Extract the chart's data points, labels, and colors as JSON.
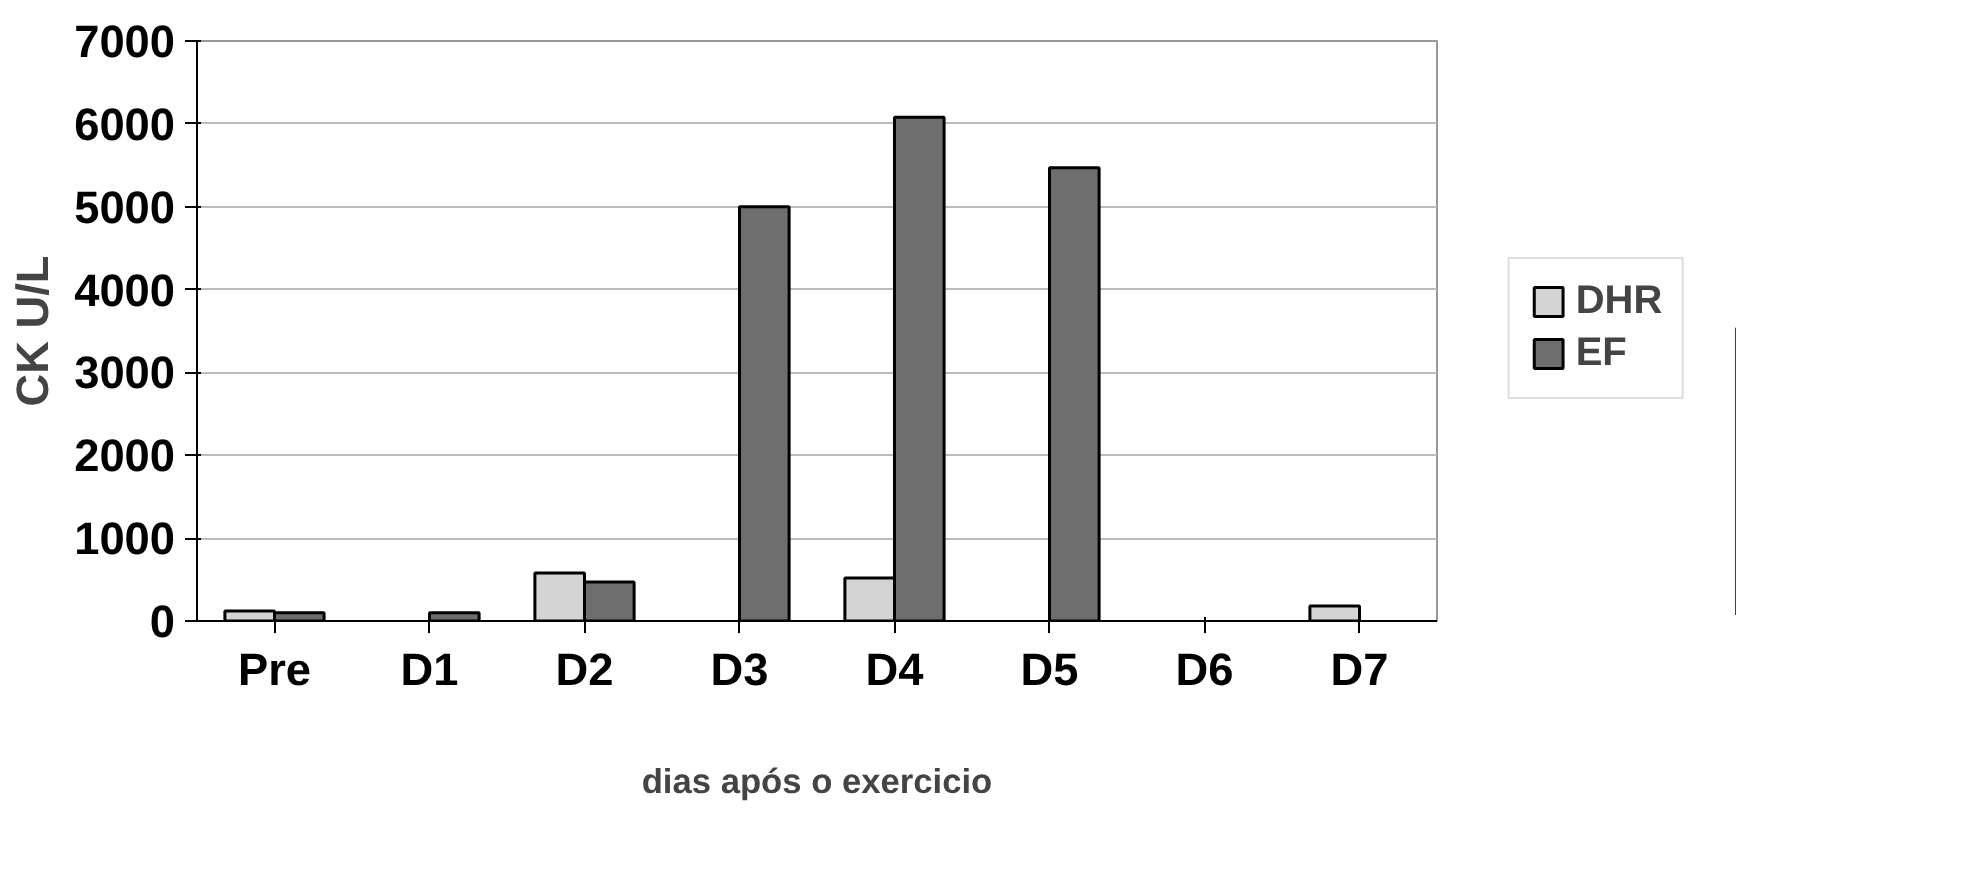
{
  "chart_data": {
    "type": "bar",
    "xlabel": "dias após o exercicio",
    "ylabel": "CK U/L",
    "categories": [
      "Pre",
      "D1",
      "D2",
      "D3",
      "D4",
      "D5",
      "D6",
      "D7"
    ],
    "series": [
      {
        "name": "DHR",
        "color": "#d4d4d4",
        "values": [
          120,
          null,
          580,
          null,
          520,
          null,
          null,
          180
        ]
      },
      {
        "name": "EF",
        "color": "#6e6e6e",
        "values": [
          100,
          100,
          470,
          5000,
          6080,
          5470,
          null,
          null
        ]
      }
    ],
    "ylim": [
      0,
      7000
    ],
    "yticks": [
      0,
      1000,
      2000,
      3000,
      4000,
      5000,
      6000,
      7000
    ],
    "grid": "y",
    "legend": "right"
  }
}
